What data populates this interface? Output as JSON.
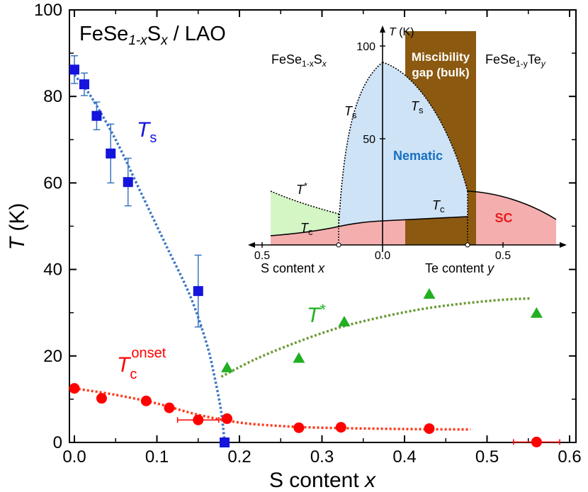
{
  "chart_data": {
    "type": "scatter",
    "title": "FeSe",
    "title_sub": "1-x",
    "title_mid": "S",
    "title_var": "x",
    "title_end": " / LAO",
    "xlabel": "S content ",
    "xlabel_var": "x",
    "ylabel_var": "T",
    "ylabel_unit": " (K)",
    "xlim": [
      0,
      0.6
    ],
    "ylim": [
      0,
      100
    ],
    "xticks": [
      "0.0",
      "0.1",
      "0.2",
      "0.3",
      "0.4",
      "0.5",
      "0.6"
    ],
    "yticks": [
      "0",
      "20",
      "40",
      "60",
      "80",
      "100"
    ],
    "colors": {
      "Ts": "#1414dc",
      "Tc": "#ff0000",
      "Tstar": "#22b022",
      "Ts_fit": "#3a76c4",
      "Tc_fit": "#ff3a1a",
      "Tstar_fit": "#6a9a36",
      "errbar": "#3a76c4"
    },
    "series": [
      {
        "name": "Ts",
        "label_main": "T",
        "label_sub": "s",
        "marker": "square",
        "points": [
          {
            "x": 0.0,
            "y": 86.2,
            "err": 3.2
          },
          {
            "x": 0.012,
            "y": 82.8,
            "err": 2.6
          },
          {
            "x": 0.027,
            "y": 75.5,
            "err": 3.2
          },
          {
            "x": 0.044,
            "y": 66.8,
            "err": 6.8
          },
          {
            "x": 0.065,
            "y": 60.2,
            "err": 5.5
          },
          {
            "x": 0.15,
            "y": 35.0,
            "err": 8.3
          },
          {
            "x": 0.182,
            "y": 0.0,
            "err": 0
          }
        ],
        "fit": [
          [
            0.0,
            85
          ],
          [
            0.02,
            80
          ],
          [
            0.05,
            70
          ],
          [
            0.08,
            58
          ],
          [
            0.11,
            46
          ],
          [
            0.14,
            34
          ],
          [
            0.16,
            23
          ],
          [
            0.17,
            15
          ],
          [
            0.178,
            7
          ],
          [
            0.182,
            0
          ]
        ]
      },
      {
        "name": "Tc_onset",
        "label_main": "T",
        "label_sub": "c",
        "label_sup": "onset",
        "marker": "circle",
        "points": [
          {
            "x": 0.0,
            "y": 12.5
          },
          {
            "x": 0.033,
            "y": 10.2
          },
          {
            "x": 0.087,
            "y": 9.6
          },
          {
            "x": 0.115,
            "y": 8.0
          },
          {
            "x": 0.15,
            "y": 5.2,
            "xerr": 0.025
          },
          {
            "x": 0.185,
            "y": 5.5
          },
          {
            "x": 0.272,
            "y": 3.4
          },
          {
            "x": 0.323,
            "y": 3.5
          },
          {
            "x": 0.43,
            "y": 3.2
          },
          {
            "x": 0.56,
            "y": 0.1,
            "xerr": 0.028
          }
        ],
        "fit": [
          [
            0.0,
            12.5
          ],
          [
            0.05,
            11
          ],
          [
            0.1,
            9
          ],
          [
            0.15,
            6.4
          ],
          [
            0.2,
            4.6
          ],
          [
            0.25,
            3.8
          ],
          [
            0.3,
            3.4
          ],
          [
            0.4,
            3.1
          ],
          [
            0.48,
            3.0
          ]
        ]
      },
      {
        "name": "Tstar",
        "label_main": "T",
        "label_sup": "*",
        "marker": "triangle",
        "points": [
          {
            "x": 0.185,
            "y": 17.2
          },
          {
            "x": 0.272,
            "y": 19.4
          },
          {
            "x": 0.327,
            "y": 27.8
          },
          {
            "x": 0.43,
            "y": 34.2
          },
          {
            "x": 0.56,
            "y": 29.8
          }
        ],
        "fit": [
          [
            0.178,
            15.2
          ],
          [
            0.22,
            19.3
          ],
          [
            0.27,
            23.2
          ],
          [
            0.32,
            26.5
          ],
          [
            0.37,
            28.9
          ],
          [
            0.42,
            30.8
          ],
          [
            0.47,
            32.1
          ],
          [
            0.52,
            33.0
          ],
          [
            0.554,
            33.3
          ]
        ]
      }
    ],
    "inset": {
      "type": "phase-diagram",
      "y_axis_label": "T",
      "y_axis_unit": " (K)",
      "yticks": [
        "50",
        "100"
      ],
      "xticks": [
        "0.5",
        "0.0",
        "0.5"
      ],
      "left_title_main": "FeSe",
      "left_title_sub": "1-x",
      "left_title_end": "S",
      "left_title_var": "x",
      "right_title_main": "FeSe",
      "right_title_sub": "1-y",
      "right_title_end": "Te",
      "right_title_var": "y",
      "left_axis_label": "S content ",
      "left_axis_var": "x",
      "right_axis_label": "Te content ",
      "right_axis_var": "y",
      "miscibility_line1": "Miscibility",
      "miscibility_line2": "gap (bulk)",
      "nematic_label": "Nematic",
      "sc_label": "SC",
      "tstar_main": "T",
      "tstar_sup": "*",
      "ts_main": "T",
      "ts_sub": "s",
      "tc_main": "T",
      "tc_sub": "c",
      "colors": {
        "nematic": "#cfe3f7",
        "sc": "#f5aeae",
        "tstar_region": "#d4f5c4",
        "miscibility": "#8b5a10",
        "nematic_text": "#1570c0",
        "sc_text": "#e81c1c",
        "misc_text": "#ffffff"
      }
    }
  }
}
